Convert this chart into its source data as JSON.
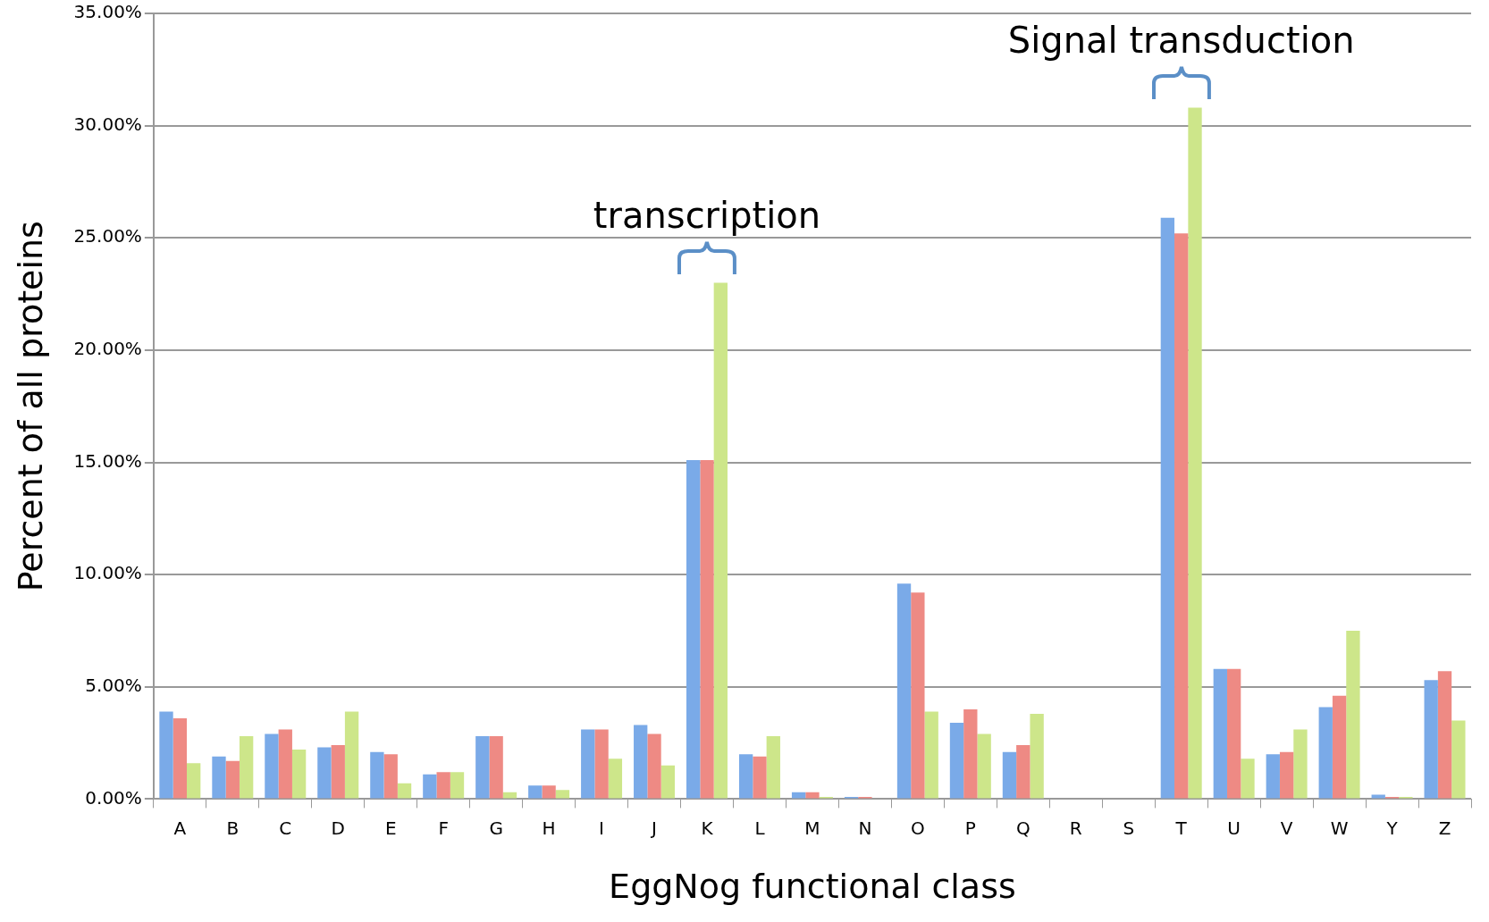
{
  "chart_data": {
    "type": "bar",
    "xlabel": "EggNog functional class",
    "ylabel": "Percent of all proteins",
    "categories": [
      "A",
      "B",
      "C",
      "D",
      "E",
      "F",
      "G",
      "H",
      "I",
      "J",
      "K",
      "L",
      "M",
      "N",
      "O",
      "P",
      "Q",
      "R",
      "S",
      "T",
      "U",
      "V",
      "W",
      "Y",
      "Z"
    ],
    "series": [
      {
        "color": "#7aaae8",
        "values": [
          3.9,
          1.9,
          2.9,
          2.3,
          2.1,
          1.1,
          2.8,
          0.6,
          3.1,
          3.3,
          15.1,
          2.0,
          0.3,
          0.1,
          9.6,
          3.4,
          2.1,
          0,
          0,
          25.9,
          5.8,
          2.0,
          4.1,
          0.2,
          5.3
        ]
      },
      {
        "color": "#ee8a84",
        "values": [
          3.6,
          1.7,
          3.1,
          2.4,
          2.0,
          1.2,
          2.8,
          0.6,
          3.1,
          2.9,
          15.1,
          1.9,
          0.3,
          0.1,
          9.2,
          4.0,
          2.4,
          0,
          0,
          25.2,
          5.8,
          2.1,
          4.6,
          0.1,
          5.7
        ]
      },
      {
        "color": "#cde68a",
        "values": [
          1.6,
          2.8,
          2.2,
          3.9,
          0.7,
          1.2,
          0.3,
          0.4,
          1.8,
          1.5,
          23.0,
          2.8,
          0.1,
          0,
          3.9,
          2.9,
          3.8,
          0,
          0,
          30.8,
          1.8,
          3.1,
          7.5,
          0.1,
          3.5
        ]
      }
    ],
    "ylim": [
      0,
      35
    ],
    "yticks": [
      {
        "value": 0,
        "label": "0.00%"
      },
      {
        "value": 5,
        "label": "5.00%"
      },
      {
        "value": 10,
        "label": "10.00%"
      },
      {
        "value": 15,
        "label": "15.00%"
      },
      {
        "value": 20,
        "label": "20.00%"
      },
      {
        "value": 25,
        "label": "25.00%"
      },
      {
        "value": 30,
        "label": "30.00%"
      },
      {
        "value": 35,
        "label": "35.00%"
      }
    ],
    "grid": "y",
    "legend": false,
    "annotations": [
      "transcription",
      "Signal transduction"
    ]
  }
}
